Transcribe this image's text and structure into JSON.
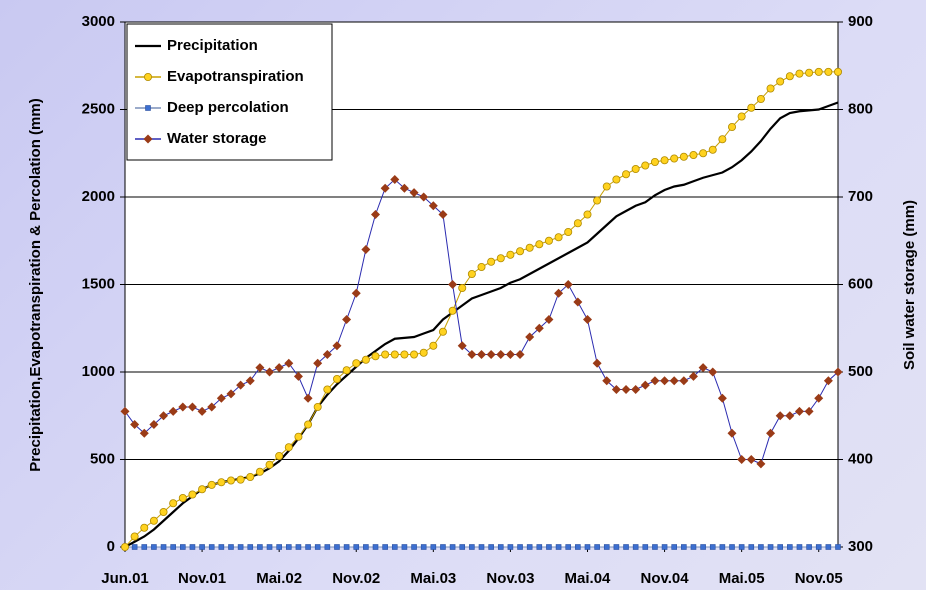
{
  "chart_data": {
    "type": "line",
    "y_label": "Precipitation,Evapotranspiration & Percolation (mm)",
    "y2_label": "Soil water storage (mm)",
    "categories": [
      "Jun.01",
      null,
      null,
      null,
      null,
      null,
      null,
      null,
      "Nov.01",
      null,
      null,
      null,
      null,
      null,
      null,
      null,
      "Mai.02",
      null,
      null,
      null,
      null,
      null,
      null,
      null,
      "Nov.02",
      null,
      null,
      null,
      null,
      null,
      null,
      null,
      "Mai.03",
      null,
      null,
      null,
      null,
      null,
      null,
      null,
      "Nov.03",
      null,
      null,
      null,
      null,
      null,
      null,
      null,
      "Mai.04",
      null,
      null,
      null,
      null,
      null,
      null,
      null,
      "Nov.04",
      null,
      null,
      null,
      null,
      null,
      null,
      null,
      "Mai.05",
      null,
      null,
      null,
      null,
      null,
      null,
      null,
      "Nov.05",
      null,
      null
    ],
    "ylim": [
      0,
      3000
    ],
    "yticks": [
      0,
      500,
      1000,
      1500,
      2000,
      2500,
      3000
    ],
    "y2lim": [
      300,
      900
    ],
    "y2ticks": [
      300,
      400,
      500,
      600,
      700,
      800,
      900
    ],
    "grid": true,
    "legend": "upper left",
    "series": [
      {
        "name": "Precipitation",
        "color": "#000000",
        "marker": "none",
        "values": [
          0,
          30,
          60,
          100,
          150,
          200,
          250,
          290,
          330,
          355,
          370,
          380,
          390,
          400,
          420,
          450,
          490,
          550,
          620,
          700,
          800,
          870,
          930,
          980,
          1030,
          1080,
          1120,
          1160,
          1190,
          1195,
          1200,
          1220,
          1240,
          1300,
          1340,
          1380,
          1420,
          1440,
          1460,
          1480,
          1510,
          1530,
          1560,
          1590,
          1620,
          1650,
          1680,
          1710,
          1740,
          1790,
          1840,
          1890,
          1920,
          1950,
          1970,
          2010,
          2040,
          2060,
          2070,
          2090,
          2110,
          2125,
          2140,
          2170,
          2210,
          2260,
          2320,
          2390,
          2450,
          2480,
          2490,
          2495,
          2500,
          2520,
          2540
        ]
      },
      {
        "name": "Evapotranspiration",
        "color": "#ffd21f",
        "marker": "circle",
        "values": [
          0,
          60,
          110,
          150,
          200,
          250,
          280,
          300,
          330,
          355,
          370,
          380,
          385,
          400,
          430,
          470,
          520,
          570,
          630,
          700,
          800,
          900,
          960,
          1010,
          1050,
          1070,
          1090,
          1100,
          1100,
          1100,
          1100,
          1110,
          1150,
          1230,
          1350,
          1480,
          1560,
          1600,
          1630,
          1650,
          1670,
          1690,
          1710,
          1730,
          1750,
          1770,
          1800,
          1850,
          1900,
          1980,
          2060,
          2100,
          2130,
          2160,
          2180,
          2200,
          2210,
          2220,
          2230,
          2240,
          2250,
          2270,
          2330,
          2400,
          2460,
          2510,
          2560,
          2620,
          2660,
          2690,
          2705,
          2710,
          2715,
          2715,
          2715
        ]
      },
      {
        "name": "Deep percolation",
        "color": "#3c6fd0",
        "marker": "square",
        "values": [
          0,
          0,
          0,
          0,
          0,
          0,
          0,
          0,
          0,
          0,
          0,
          0,
          0,
          0,
          0,
          0,
          0,
          0,
          0,
          0,
          0,
          0,
          0,
          0,
          0,
          0,
          0,
          0,
          0,
          0,
          0,
          0,
          0,
          0,
          0,
          0,
          0,
          0,
          0,
          0,
          0,
          0,
          0,
          0,
          0,
          0,
          0,
          0,
          0,
          0,
          0,
          0,
          0,
          0,
          0,
          0,
          0,
          0,
          0,
          0,
          0,
          0,
          0,
          0,
          0,
          0,
          0,
          0,
          0,
          0,
          0,
          0,
          0,
          0,
          0
        ]
      },
      {
        "name": "Water storage",
        "color": "#9a3b17",
        "marker": "diamond",
        "axis": "y2",
        "values": [
          455,
          440,
          430,
          440,
          450,
          455,
          460,
          460,
          455,
          460,
          470,
          475,
          485,
          490,
          505,
          500,
          505,
          510,
          495,
          470,
          510,
          520,
          530,
          560,
          590,
          640,
          680,
          710,
          720,
          710,
          705,
          700,
          690,
          680,
          600,
          530,
          520,
          520,
          520,
          520,
          520,
          520,
          540,
          550,
          560,
          590,
          600,
          580,
          560,
          510,
          490,
          480,
          480,
          480,
          485,
          490,
          490,
          490,
          490,
          495,
          505,
          500,
          470,
          430,
          400,
          400,
          395,
          430,
          450,
          450,
          455,
          455,
          470,
          490,
          500
        ]
      }
    ]
  }
}
